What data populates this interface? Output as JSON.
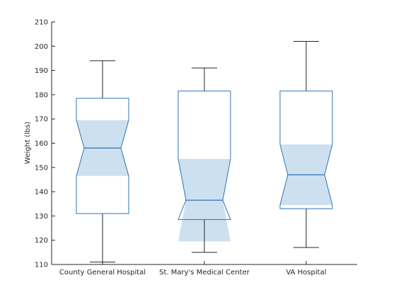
{
  "chart_data": {
    "type": "boxplot",
    "ylabel": "Weight (lbs)",
    "ylim": [
      110,
      210
    ],
    "yticks": [
      110,
      120,
      130,
      140,
      150,
      160,
      170,
      180,
      190,
      200,
      210
    ],
    "grid": false,
    "notched": true,
    "box_color": "#2f72b8",
    "notch_fill": "#cce0f0",
    "whisker_color": "#262626",
    "median_color": "#2f72b8",
    "axis_color": "#262626",
    "categories": [
      "County General Hospital",
      "St. Mary's Medical Center",
      "VA Hospital"
    ],
    "boxes": [
      {
        "category": "County General Hospital",
        "whisker_low": 111,
        "q1": 131,
        "median": 158,
        "q3": 178.5,
        "whisker_high": 194,
        "notch_low": 146.5,
        "notch_high": 169.5
      },
      {
        "category": "St. Mary's Medical Center",
        "whisker_low": 115,
        "q1": 128.5,
        "median": 136.5,
        "q3": 181.5,
        "whisker_high": 191,
        "notch_low": 119.5,
        "notch_high": 153.5
      },
      {
        "category": "VA Hospital",
        "whisker_low": 117,
        "q1": 133,
        "median": 147,
        "q3": 181.5,
        "whisker_high": 202,
        "notch_low": 134.5,
        "notch_high": 159.5
      }
    ]
  }
}
